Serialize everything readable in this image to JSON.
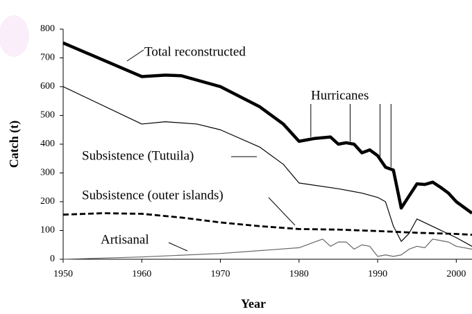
{
  "chart_data": {
    "type": "line",
    "xlabel": "Year",
    "ylabel": "Catch (t)",
    "xlim": [
      1950,
      2002
    ],
    "ylim": [
      0,
      800
    ],
    "xticks": [
      1950,
      1960,
      1970,
      1980,
      1990,
      2000
    ],
    "yticks": [
      0,
      100,
      200,
      300,
      400,
      500,
      600,
      700,
      800
    ],
    "series": [
      {
        "name": "Total reconstructed",
        "color": "#000000",
        "style": "thick",
        "x": [
          1950,
          1960,
          1963,
          1965,
          1970,
          1975,
          1978,
          1980,
          1982,
          1984,
          1985,
          1986,
          1987,
          1988,
          1989,
          1990,
          1991,
          1992,
          1993,
          1994,
          1995,
          1996,
          1997,
          1998,
          1999,
          2000,
          2002
        ],
        "values": [
          752,
          635,
          640,
          638,
          600,
          530,
          470,
          410,
          420,
          425,
          400,
          405,
          400,
          370,
          380,
          360,
          320,
          310,
          178,
          220,
          262,
          260,
          268,
          250,
          230,
          200,
          160
        ]
      },
      {
        "name": "Subsistence (Tutuila)",
        "color": "#000000",
        "style": "thin",
        "x": [
          1950,
          1960,
          1963,
          1967,
          1970,
          1975,
          1978,
          1980,
          1985,
          1988,
          1990,
          1991,
          1992,
          1993,
          1994,
          1995,
          2000,
          2002
        ],
        "values": [
          600,
          470,
          478,
          470,
          450,
          390,
          330,
          265,
          245,
          230,
          215,
          200,
          115,
          62,
          90,
          140,
          75,
          45
        ]
      },
      {
        "name": "Subsistence (outer islands)",
        "color": "#000000",
        "style": "dashed",
        "x": [
          1950,
          1955,
          1960,
          1965,
          1970,
          1975,
          1980,
          1985,
          1990,
          1995,
          2000,
          2002
        ],
        "values": [
          155,
          160,
          158,
          145,
          128,
          115,
          105,
          103,
          98,
          92,
          88,
          85
        ]
      },
      {
        "name": "Artisanal",
        "color": "#666666",
        "style": "thin",
        "x": [
          1950,
          1960,
          1970,
          1980,
          1982,
          1983,
          1984,
          1985,
          1986,
          1987,
          1988,
          1989,
          1990,
          1991,
          1992,
          1993,
          1994,
          1995,
          1996,
          1997,
          1998,
          1999,
          2000,
          2002
        ],
        "values": [
          0,
          8,
          20,
          40,
          60,
          70,
          45,
          60,
          60,
          35,
          50,
          45,
          10,
          15,
          10,
          15,
          35,
          45,
          40,
          70,
          65,
          60,
          45,
          35
        ]
      }
    ],
    "annotations": [
      {
        "text": "Hurricanes",
        "x": [
          1981.5,
          1986.5,
          1990.3,
          1991.7
        ]
      }
    ]
  }
}
